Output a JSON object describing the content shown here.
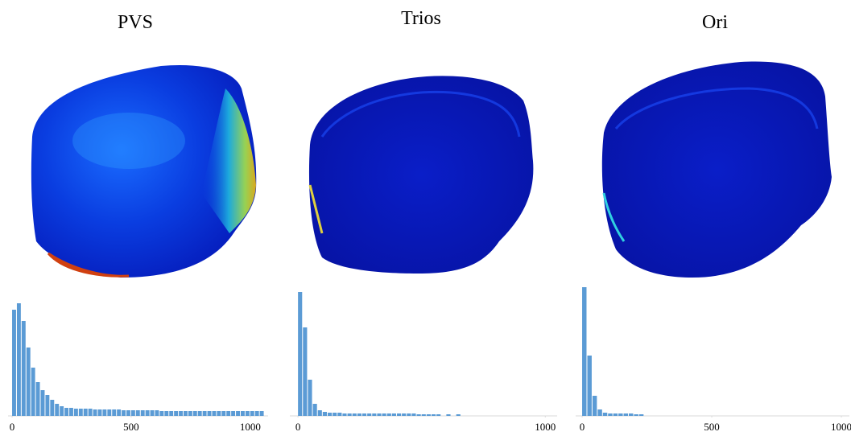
{
  "chart_data": [
    {
      "type": "histogram",
      "title": "PVS",
      "color": "#5b9bd5",
      "bins": [
        0,
        20,
        40,
        60,
        80,
        100,
        120,
        140,
        160,
        180,
        200,
        220,
        240,
        260,
        280,
        300,
        320,
        340,
        360,
        380,
        400,
        420,
        440,
        460,
        480,
        500,
        520,
        540,
        560,
        580,
        600,
        620,
        640,
        660,
        680,
        700,
        720,
        740,
        760,
        780,
        800,
        820,
        840,
        860,
        880,
        900,
        920,
        940,
        960,
        980,
        1000,
        1020,
        1040,
        1060
      ],
      "values": [
        132,
        140,
        118,
        85,
        60,
        42,
        32,
        26,
        20,
        15,
        12,
        10,
        10,
        9,
        9,
        9,
        9,
        8,
        8,
        8,
        8,
        8,
        8,
        7,
        7,
        7,
        7,
        7,
        7,
        7,
        7,
        6,
        6,
        6,
        6,
        6,
        6,
        6,
        6,
        6,
        6,
        6,
        6,
        6,
        6,
        6,
        6,
        6,
        6,
        6,
        6,
        6,
        6
      ],
      "xlim": [
        -17,
        1075
      ],
      "xticks": [
        0,
        500,
        1000
      ]
    },
    {
      "type": "histogram",
      "title": "Trios",
      "color": "#5b9bd5",
      "bins": [
        0,
        20,
        40,
        60,
        80,
        100,
        120,
        140,
        160,
        180,
        200,
        220,
        240,
        260,
        280,
        300,
        320,
        340,
        360,
        380,
        400,
        420,
        440,
        460,
        480,
        500,
        520,
        540,
        560,
        580,
        600,
        620,
        640,
        660
      ],
      "values": [
        154,
        110,
        45,
        15,
        7,
        5,
        4,
        4,
        4,
        3,
        3,
        3,
        3,
        3,
        3,
        3,
        3,
        3,
        3,
        3,
        3,
        3,
        3,
        3,
        2,
        2,
        2,
        2,
        2,
        0,
        2,
        0,
        2
      ],
      "xlim": [
        -33,
        1048
      ],
      "xticks": [
        0,
        1000
      ]
    },
    {
      "type": "histogram",
      "title": "Ori",
      "color": "#5b9bd5",
      "bins": [
        0,
        20,
        40,
        60,
        80,
        100,
        120,
        140,
        160,
        180,
        200,
        220,
        240
      ],
      "values": [
        160,
        75,
        25,
        8,
        4,
        3,
        3,
        3,
        3,
        3,
        2,
        2
      ],
      "xlim": [
        -25,
        1031
      ],
      "xticks": [
        0,
        500,
        1000
      ]
    }
  ]
}
